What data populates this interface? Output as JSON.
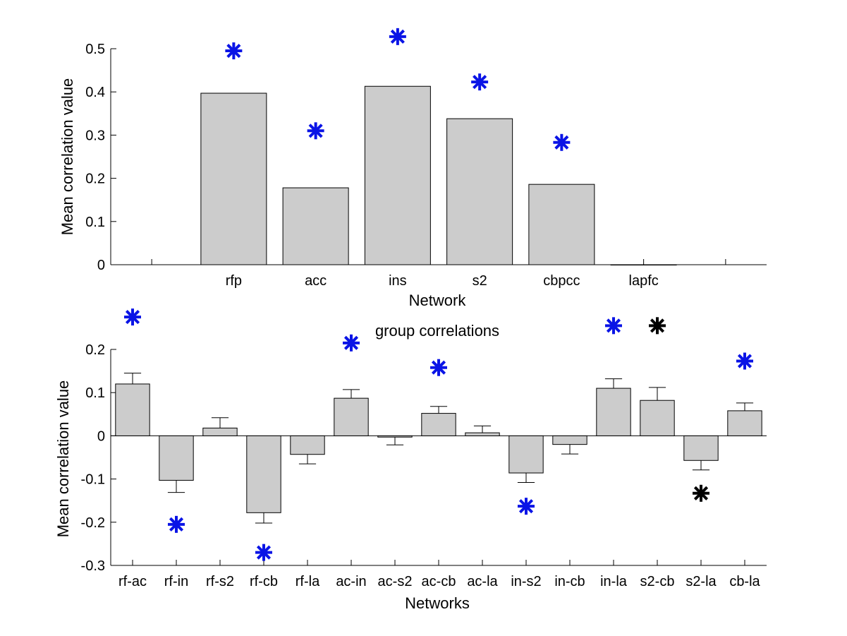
{
  "chart_data": [
    {
      "type": "bar",
      "title": "",
      "xlabel": "Network",
      "ylabel": "Mean correlation value",
      "categories": [
        "",
        "rfp",
        "acc",
        "ins",
        "s2",
        "cbpcc",
        "lapfc",
        ""
      ],
      "values": [
        null,
        0.397,
        0.178,
        0.413,
        0.338,
        0.186,
        0.0,
        null
      ],
      "markers": [
        null,
        0.495,
        0.31,
        0.528,
        0.423,
        0.283,
        null,
        null
      ],
      "marker_colors": [
        null,
        "blue",
        "blue",
        "blue",
        "blue",
        "blue",
        null,
        null
      ],
      "ylim": [
        0,
        0.5
      ],
      "yticks": [
        0,
        0.1,
        0.2,
        0.3,
        0.4,
        0.5
      ],
      "ytick_labels": [
        "0",
        "0.1",
        "0.2",
        "0.3",
        "0.4",
        "0.5"
      ],
      "grid": false,
      "colors": {
        "bar": "#cccccc",
        "blue": "#0a14e6",
        "black": "#000000"
      }
    },
    {
      "type": "bar",
      "title": "group correlations",
      "xlabel": "Networks",
      "ylabel": "Mean correlation value",
      "categories": [
        "rf-ac",
        "rf-in",
        "rf-s2",
        "rf-cb",
        "rf-la",
        "ac-in",
        "ac-s2",
        "ac-cb",
        "ac-la",
        "in-s2",
        "in-cb",
        "in-la",
        "s2-cb",
        "s2-la",
        "cb-la"
      ],
      "values": [
        0.12,
        -0.103,
        0.018,
        -0.178,
        -0.043,
        0.087,
        -0.003,
        0.052,
        0.007,
        -0.086,
        -0.02,
        0.11,
        0.082,
        -0.057,
        0.058
      ],
      "errors": [
        0.025,
        0.028,
        0.024,
        0.024,
        0.022,
        0.02,
        0.018,
        0.016,
        0.016,
        0.022,
        0.022,
        0.022,
        0.03,
        0.022,
        0.018
      ],
      "markers": [
        0.275,
        -0.205,
        null,
        -0.27,
        null,
        0.215,
        null,
        0.158,
        null,
        -0.163,
        null,
        0.255,
        0.255,
        -0.133,
        0.173
      ],
      "marker_colors": [
        "blue",
        "blue",
        null,
        "blue",
        null,
        "blue",
        null,
        "blue",
        null,
        "blue",
        null,
        "blue",
        "black",
        "black",
        "blue"
      ],
      "ylim": [
        -0.3,
        0.2
      ],
      "yticks": [
        -0.3,
        -0.2,
        -0.1,
        0,
        0.1,
        0.2
      ],
      "ytick_labels": [
        "-0.3",
        "-0.2",
        "-0.1",
        "0",
        "0.1",
        "0.2"
      ],
      "grid": false,
      "colors": {
        "bar": "#cccccc",
        "blue": "#0a14e6",
        "black": "#000000"
      }
    }
  ]
}
